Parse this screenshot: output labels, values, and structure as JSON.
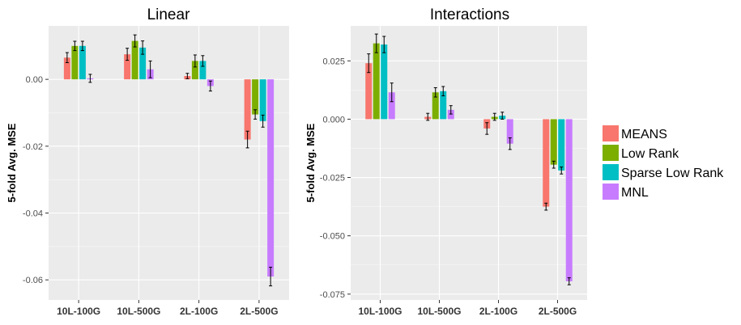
{
  "chart_data": [
    {
      "type": "bar",
      "title": "Linear",
      "ylabel": "5-fold Avg. MSE",
      "xlabel": "",
      "categories": [
        "10L-100G",
        "10L-500G",
        "2L-100G",
        "2L-500G"
      ],
      "ylim": [
        -0.066,
        0.016
      ],
      "yticks": [
        0.0,
        -0.02,
        -0.04,
        -0.06
      ],
      "ytick_labels": [
        "0.00",
        "-0.02",
        "-0.04",
        "-0.06"
      ],
      "grid": true,
      "series": [
        {
          "name": "MEANS",
          "color": "#F8766D",
          "values": [
            0.0065,
            0.0075,
            0.001,
            -0.018
          ],
          "errors": [
            0.0015,
            0.0018,
            0.0008,
            0.0025
          ]
        },
        {
          "name": "Low Rank",
          "color": "#7CAE00",
          "values": [
            0.01,
            0.0115,
            0.0055,
            -0.0105
          ],
          "errors": [
            0.0014,
            0.0018,
            0.0018,
            0.0014
          ]
        },
        {
          "name": "Sparse Low Rank",
          "color": "#00BFC4",
          "values": [
            0.01,
            0.0095,
            0.0055,
            -0.0125
          ],
          "errors": [
            0.0014,
            0.002,
            0.0016,
            0.0018
          ]
        },
        {
          "name": "MNL",
          "color": "#C77CFF",
          "values": [
            0.0003,
            0.003,
            -0.002,
            -0.059
          ],
          "errors": [
            0.0012,
            0.0025,
            0.0015,
            0.0028
          ]
        }
      ]
    },
    {
      "type": "bar",
      "title": "Interactions",
      "ylabel": "5-fold Avg. MSE",
      "xlabel": "",
      "categories": [
        "10L-100G",
        "10L-500G",
        "2L-100G",
        "2L-500G"
      ],
      "ylim": [
        -0.0775,
        0.04
      ],
      "yticks": [
        0.025,
        0.0,
        -0.025,
        -0.05,
        -0.075
      ],
      "ytick_labels": [
        "0.025",
        "0.000",
        "-0.025",
        "-0.050",
        "-0.075"
      ],
      "grid": true,
      "series": [
        {
          "name": "MEANS",
          "color": "#F8766D",
          "values": [
            0.024,
            0.001,
            -0.004,
            -0.0375
          ],
          "errors": [
            0.004,
            0.0015,
            0.0025,
            0.0015
          ]
        },
        {
          "name": "Low Rank",
          "color": "#7CAE00",
          "values": [
            0.0325,
            0.0115,
            0.001,
            -0.0195
          ],
          "errors": [
            0.004,
            0.002,
            0.0015,
            0.0015
          ]
        },
        {
          "name": "Sparse Low Rank",
          "color": "#00BFC4",
          "values": [
            0.032,
            0.012,
            0.0015,
            -0.022
          ],
          "errors": [
            0.0035,
            0.002,
            0.0015,
            0.0015
          ]
        },
        {
          "name": "MNL",
          "color": "#C77CFF",
          "values": [
            0.0115,
            0.004,
            -0.0105,
            -0.0695
          ],
          "errors": [
            0.004,
            0.0018,
            0.0025,
            0.0015
          ]
        }
      ]
    }
  ],
  "legend": {
    "position": "right",
    "items": [
      {
        "label": "MEANS",
        "color": "#F8766D"
      },
      {
        "label": "Low Rank",
        "color": "#7CAE00"
      },
      {
        "label": "Sparse Low Rank",
        "color": "#00BFC4"
      },
      {
        "label": "MNL",
        "color": "#C77CFF"
      }
    ]
  },
  "colors": {
    "panel_background": "#EBEBEB",
    "grid": "#FFFFFF"
  }
}
